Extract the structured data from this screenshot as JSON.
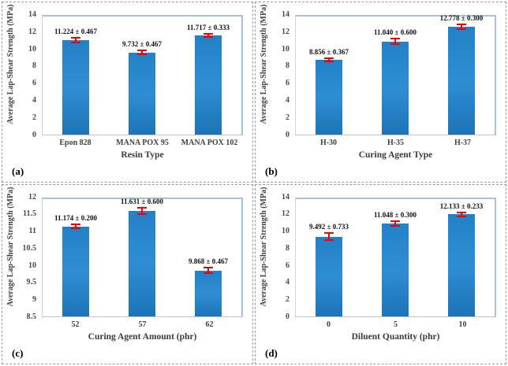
{
  "colors": {
    "bar_fill_top": "#2382c7",
    "bar_fill_mid": "#2f8ed3",
    "bar_fill_bottom": "#1c74b6",
    "error_bar": "#ee0202",
    "plot_border": "#9dc3e6",
    "panel_border": "#9a9a9a"
  },
  "chart_data": [
    {
      "panel_label": "(a)",
      "type": "bar",
      "categories": [
        "Epon 828",
        "MANA POX 95",
        "MANA POX 102"
      ],
      "values": [
        11.224,
        9.732,
        11.717
      ],
      "errors": [
        0.467,
        0.467,
        0.333
      ],
      "labels": [
        "11.224 ± 0.467",
        "9.732 ± 0.467",
        "11.717 ± 0.333"
      ],
      "err_display": [
        0.27,
        0.27,
        0.19
      ],
      "xlabel": "Resin Type",
      "ylabel": "Average Lap-Shear Strength (MPa)",
      "ylim": [
        0,
        14
      ],
      "yticks": [
        "0",
        "2",
        "4",
        "6",
        "8",
        "10",
        "12",
        "14"
      ],
      "grid": false,
      "legend": null
    },
    {
      "panel_label": "(b)",
      "type": "bar",
      "categories": [
        "H-30",
        "H-35",
        "H-37"
      ],
      "values": [
        8.856,
        11.04,
        12.778
      ],
      "errors": [
        0.367,
        0.6,
        0.3
      ],
      "labels": [
        "8.856 ± 0.367",
        "11.040 ± 0.600",
        "12.778 ± 0.300"
      ],
      "err_display": [
        0.21,
        0.35,
        0.25
      ],
      "xlabel": "Curing Agent Type",
      "ylabel": "Average Lap-Shear Strength (MPa)",
      "ylim": [
        0,
        14
      ],
      "yticks": [
        "0",
        "2",
        "4",
        "6",
        "8",
        "10",
        "12",
        "14"
      ],
      "grid": false,
      "legend": null
    },
    {
      "panel_label": "(c)",
      "type": "bar",
      "categories": [
        "52",
        "57",
        "62"
      ],
      "values": [
        11.174,
        11.631,
        9.868
      ],
      "errors": [
        0.2,
        0.6,
        0.467
      ],
      "labels": [
        "11.174 ± 0.200",
        "11.631 ± 0.600",
        "9.868 ± 0.467"
      ],
      "err_display": [
        0.055,
        0.09,
        0.09
      ],
      "xlabel": "Curing Agent Amount (phr)",
      "ylabel": "Average Lap-Shear Strength (MPa)",
      "ylim": [
        8.5,
        12
      ],
      "yticks": [
        "8.5",
        "9",
        "9.5",
        "10",
        "10.5",
        "11",
        "11.5",
        "12"
      ],
      "grid": false,
      "legend": null
    },
    {
      "panel_label": "(d)",
      "type": "bar",
      "categories": [
        "0",
        "5",
        "10"
      ],
      "values": [
        9.492,
        11.048,
        12.133
      ],
      "errors": [
        0.733,
        0.3,
        0.233
      ],
      "labels": [
        "9.492 ± 0.733",
        "11.048 ± 0.300",
        "12.133 ± 0.233"
      ],
      "err_display": [
        0.42,
        0.25,
        0.2
      ],
      "xlabel": "Diluent Quantity (phr)",
      "ylabel": "Average Lap-Shear Strength (MPa)",
      "ylim": [
        0,
        14
      ],
      "yticks": [
        "0",
        "2",
        "4",
        "6",
        "8",
        "10",
        "12",
        "14"
      ],
      "grid": false,
      "legend": null
    }
  ]
}
